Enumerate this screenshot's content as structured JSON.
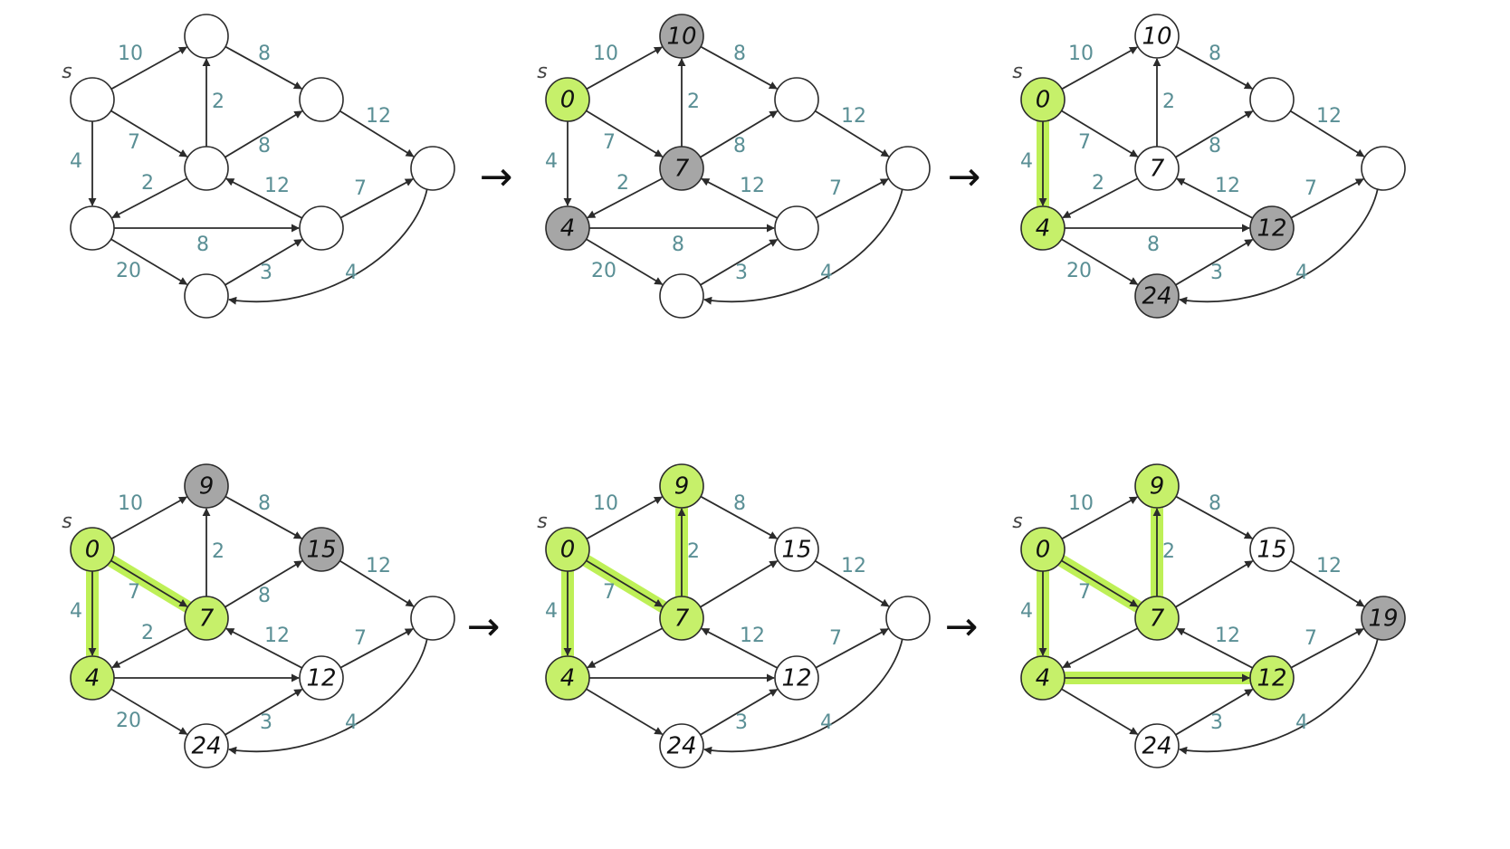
{
  "colors": {
    "visited": "#c6f06a",
    "frontier": "#a6a6a6",
    "plain": "#ffffff",
    "highlight": "#b8ef45",
    "edge": "#2b2b2b",
    "weight_text": "#5a8f95"
  },
  "graph": {
    "source_label": "s",
    "nodes": [
      "s",
      "a",
      "b",
      "c",
      "d",
      "e",
      "f",
      "t"
    ],
    "edges": [
      {
        "from": "s",
        "to": "a",
        "weight": "10"
      },
      {
        "from": "s",
        "to": "b",
        "weight": "7"
      },
      {
        "from": "s",
        "to": "c",
        "weight": "4"
      },
      {
        "from": "a",
        "to": "d",
        "weight": "8"
      },
      {
        "from": "b",
        "to": "a",
        "weight": "2"
      },
      {
        "from": "b",
        "to": "d",
        "weight": "8"
      },
      {
        "from": "b",
        "to": "c",
        "weight": "2"
      },
      {
        "from": "d",
        "to": "t",
        "weight": "12"
      },
      {
        "from": "e",
        "to": "b",
        "weight": "12"
      },
      {
        "from": "c",
        "to": "e",
        "weight": "8"
      },
      {
        "from": "e",
        "to": "t",
        "weight": "7"
      },
      {
        "from": "c",
        "to": "f",
        "weight": "20"
      },
      {
        "from": "f",
        "to": "e",
        "weight": "3"
      },
      {
        "from": "t",
        "to": "f",
        "weight": "4"
      }
    ]
  },
  "steps": [
    {
      "labels": {},
      "states": {},
      "highlighted_edges": []
    },
    {
      "labels": {
        "s": "0",
        "a": "10",
        "b": "7",
        "c": "4"
      },
      "states": {
        "s": "visited",
        "a": "frontier",
        "b": "frontier",
        "c": "frontier"
      },
      "highlighted_edges": []
    },
    {
      "labels": {
        "s": "0",
        "a": "10",
        "b": "7",
        "c": "4",
        "e": "12",
        "f": "24"
      },
      "states": {
        "s": "visited",
        "c": "visited",
        "e": "frontier",
        "f": "frontier"
      },
      "highlighted_edges": [
        [
          "s",
          "c"
        ]
      ]
    },
    {
      "labels": {
        "s": "0",
        "a": "9",
        "b": "7",
        "c": "4",
        "d": "15",
        "e": "12",
        "f": "24"
      },
      "states": {
        "s": "visited",
        "c": "visited",
        "b": "visited",
        "a": "frontier",
        "d": "frontier"
      },
      "highlighted_edges": [
        [
          "s",
          "c"
        ],
        [
          "s",
          "b"
        ]
      ]
    },
    {
      "labels": {
        "s": "0",
        "a": "9",
        "b": "7",
        "c": "4",
        "d": "15",
        "e": "12",
        "f": "24"
      },
      "states": {
        "s": "visited",
        "c": "visited",
        "b": "visited",
        "a": "visited"
      },
      "highlighted_edges": [
        [
          "s",
          "c"
        ],
        [
          "s",
          "b"
        ],
        [
          "b",
          "a"
        ]
      ]
    },
    {
      "labels": {
        "s": "0",
        "a": "9",
        "b": "7",
        "c": "4",
        "d": "15",
        "e": "12",
        "f": "24",
        "t": "19"
      },
      "states": {
        "s": "visited",
        "c": "visited",
        "b": "visited",
        "a": "visited",
        "e": "visited",
        "t": "frontier"
      },
      "highlighted_edges": [
        [
          "s",
          "c"
        ],
        [
          "s",
          "b"
        ],
        [
          "b",
          "a"
        ],
        [
          "c",
          "e"
        ]
      ]
    }
  ],
  "step_arrows": [
    "→",
    "→",
    "→",
    "→"
  ]
}
